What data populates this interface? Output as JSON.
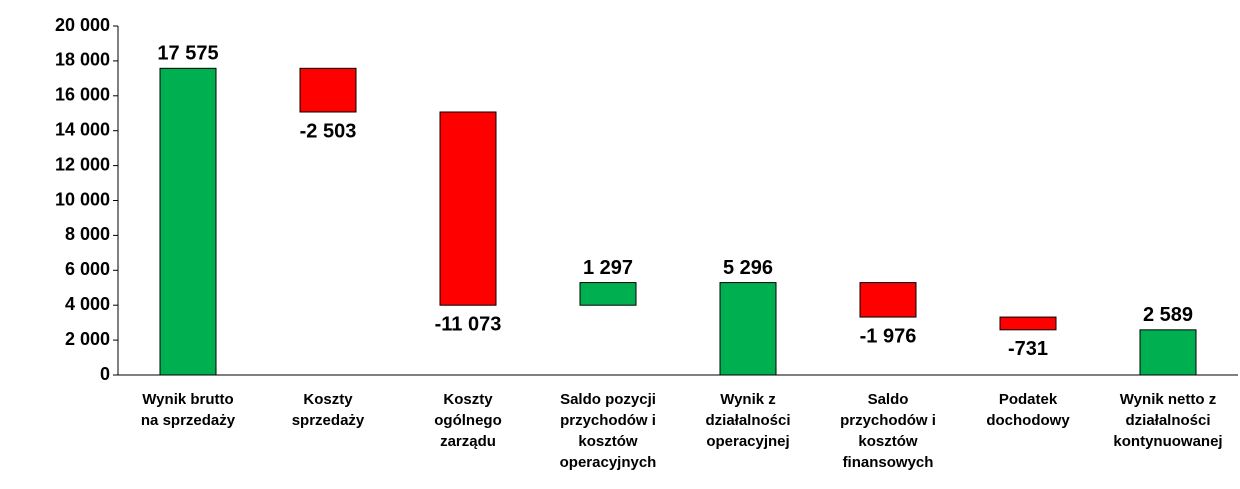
{
  "chart_data": {
    "type": "waterfall",
    "categories": [
      "Wynik brutto\nna sprzedaży",
      "Koszty\nsprzedaży",
      "Koszty\nogólnego\nzarządu",
      "Saldo pozycji\nprzychodów i\nkosztów\noperacyjnych",
      "Wynik z\ndziałalności\noperacyjnej",
      "Saldo\nprzychodów i\nkosztów\nfinansowych",
      "Podatek\ndochodowy",
      "Wynik netto z\ndziałalności\nkontynuowanej"
    ],
    "values": [
      17575,
      -2503,
      -11073,
      1297,
      5296,
      -1976,
      -731,
      2589
    ],
    "value_labels": [
      "17 575",
      "-2 503",
      "-11 073",
      "1 297",
      "5 296",
      "-1 976",
      "-731",
      "2 589"
    ],
    "positive_color": "#00b050",
    "negative_color": "#ff0000",
    "ylim": [
      0,
      20000
    ],
    "yticks": [
      0,
      {
        "value": 2000,
        "label": "2 000"
      },
      {
        "value": 4000,
        "label": "4 000"
      },
      {
        "value": 6000,
        "label": "6 000"
      },
      {
        "value": 8000,
        "label": "8 000"
      },
      {
        "value": 10000,
        "label": "10 000"
      },
      {
        "value": 12000,
        "label": "12 000"
      },
      {
        "value": 14000,
        "label": "14 000"
      },
      {
        "value": 16000,
        "label": "16 000"
      },
      {
        "value": 18000,
        "label": "18 000"
      },
      {
        "value": 20000,
        "label": "20 000"
      }
    ],
    "grid": false
  }
}
